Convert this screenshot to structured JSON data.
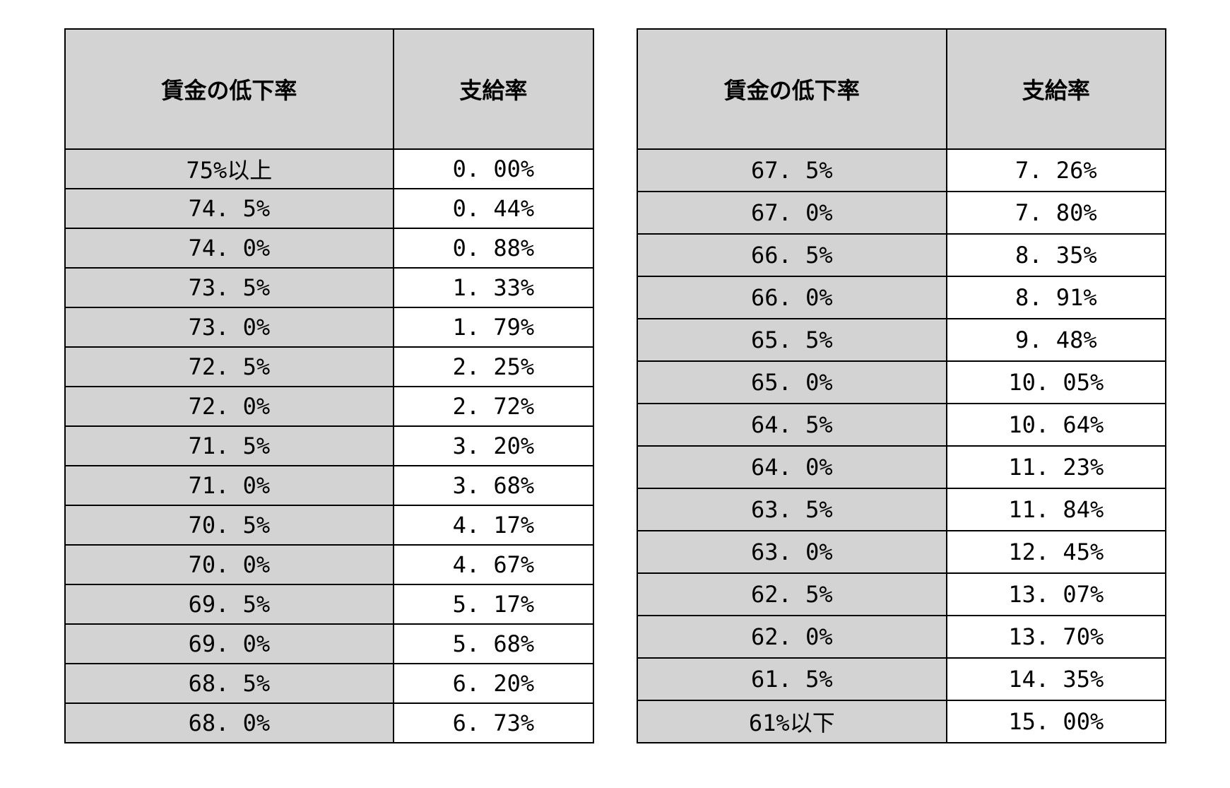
{
  "left_table": {
    "type": "table",
    "columns": [
      "賃金の低下率",
      "支給率"
    ],
    "col_widths": [
      "50%",
      "50%"
    ],
    "header_bg": "#d3d3d3",
    "rate_col_bg": "#d3d3d3",
    "pay_col_bg": "#ffffff",
    "border_color": "#000000",
    "header_fontsize": 32,
    "cell_fontsize": 32,
    "rows": [
      [
        "75%以上",
        "0. 00%"
      ],
      [
        "74. 5%",
        "0. 44%"
      ],
      [
        "74. 0%",
        "0. 88%"
      ],
      [
        "73. 5%",
        "1. 33%"
      ],
      [
        "73. 0%",
        "1. 79%"
      ],
      [
        "72. 5%",
        "2. 25%"
      ],
      [
        "72. 0%",
        "2. 72%"
      ],
      [
        "71. 5%",
        "3. 20%"
      ],
      [
        "71. 0%",
        "3. 68%"
      ],
      [
        "70. 5%",
        "4. 17%"
      ],
      [
        "70. 0%",
        "4. 67%"
      ],
      [
        "69. 5%",
        "5. 17%"
      ],
      [
        "69. 0%",
        "5. 68%"
      ],
      [
        "68. 5%",
        "6. 20%"
      ],
      [
        "68. 0%",
        "6. 73%"
      ]
    ]
  },
  "right_table": {
    "type": "table",
    "columns": [
      "賃金の低下率",
      "支給率"
    ],
    "col_widths": [
      "50%",
      "50%"
    ],
    "header_bg": "#d3d3d3",
    "rate_col_bg": "#d3d3d3",
    "pay_col_bg": "#ffffff",
    "border_color": "#000000",
    "header_fontsize": 32,
    "cell_fontsize": 32,
    "rows": [
      [
        "67. 5%",
        "7. 26%"
      ],
      [
        "67. 0%",
        "7. 80%"
      ],
      [
        "66. 5%",
        "8. 35%"
      ],
      [
        "66. 0%",
        "8. 91%"
      ],
      [
        "65. 5%",
        "9. 48%"
      ],
      [
        "65. 0%",
        "10. 05%"
      ],
      [
        "64. 5%",
        "10. 64%"
      ],
      [
        "64. 0%",
        "11. 23%"
      ],
      [
        "63. 5%",
        "11. 84%"
      ],
      [
        "63. 0%",
        "12. 45%"
      ],
      [
        "62. 5%",
        "13. 07%"
      ],
      [
        "62. 0%",
        "13. 70%"
      ],
      [
        "61. 5%",
        "14. 35%"
      ],
      [
        "61%以下",
        "15. 00%"
      ]
    ]
  }
}
